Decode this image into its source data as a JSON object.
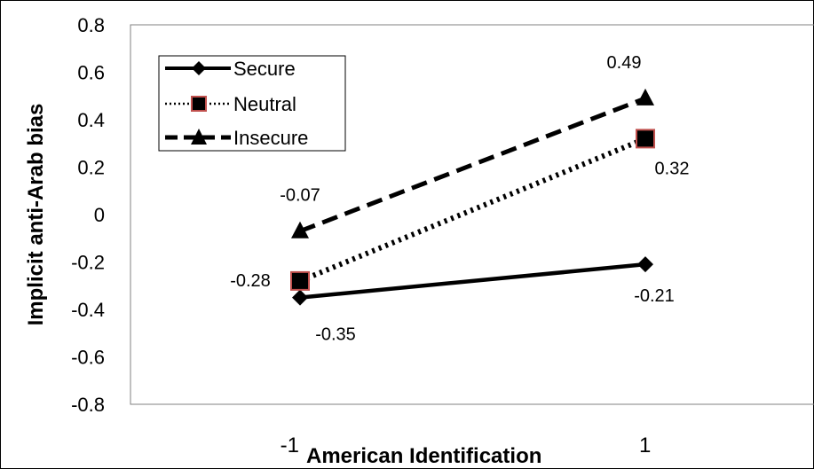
{
  "chart_data": {
    "type": "line",
    "xlabel": "American Identification",
    "ylabel": "Implicit anti-Arab bias",
    "x": [
      -1,
      1
    ],
    "x_tick_labels": [
      "-1",
      "1"
    ],
    "ylim": [
      -0.8,
      0.8
    ],
    "y_ticks": [
      -0.8,
      -0.6,
      -0.4,
      -0.2,
      0,
      0.2,
      0.4,
      0.6,
      0.8
    ],
    "y_tick_labels": [
      "-0.8",
      "-0.6",
      "-0.4",
      "-0.2",
      "0",
      "0.2",
      "0.4",
      "0.6",
      "0.8"
    ],
    "grid": false,
    "legend_position": "top-left",
    "series": [
      {
        "name": "Secure",
        "values": [
          -0.35,
          -0.21
        ],
        "labels": [
          "-0.35",
          "-0.21"
        ],
        "line_style": "solid",
        "marker": "diamond",
        "color": "#000000"
      },
      {
        "name": "Neutral",
        "values": [
          -0.28,
          0.32
        ],
        "labels": [
          "-0.28",
          "0.32"
        ],
        "line_style": "dotted",
        "marker": "square",
        "color": "#000000",
        "marker_edge_color": "#c0504d"
      },
      {
        "name": "Insecure",
        "values": [
          -0.07,
          0.49
        ],
        "labels": [
          "-0.07",
          "0.49"
        ],
        "line_style": "dashed",
        "marker": "triangle",
        "color": "#000000"
      }
    ]
  }
}
